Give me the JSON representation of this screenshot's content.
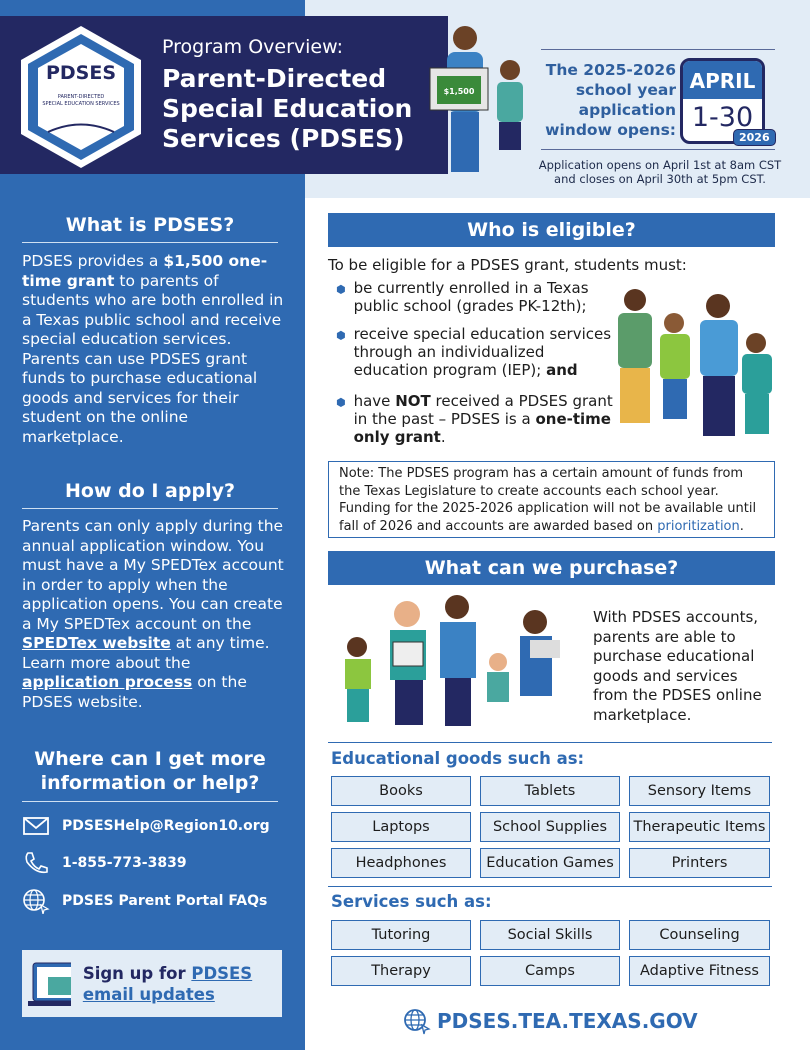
{
  "header": {
    "logo_text": "PDSES",
    "logo_sub": "PARENT-DIRECTED SPECIAL EDUCATION SERVICES",
    "kicker": "Program Overview:",
    "title": "Parent-Directed Special Education Services (PDSES)",
    "money_label": "$1,500"
  },
  "window": {
    "text": "The 2025-2026 school year application window opens:",
    "month": "APRIL",
    "days": "1-30",
    "year": "2026",
    "detail_1": "Application opens on April 1st at 8am CST",
    "detail_2": "and closes on April 30th at 5pm CST."
  },
  "left": {
    "what_heading": "What is PDSES?",
    "what_pre": "PDSES provides a ",
    "what_bold": "$1,500 one-time grant",
    "what_post": " to parents of students who are both enrolled in a Texas public school and receive special education services. Parents can use PDSES grant funds to purchase educational goods and services for their student on the online marketplace.",
    "apply_heading": "How do I apply?",
    "apply_1": "Parents can only apply during the annual application window. You must have a My SPEDTex account in order to apply when the application opens. You can create a My SPEDTex account on the ",
    "apply_link1": "SPEDTex website",
    "apply_2": " at any time. Learn more about the ",
    "apply_link2": "application process",
    "apply_3": " on the PDSES website.",
    "help_heading": "Where can I get more information or help?",
    "email": "PDSESHelp@Region10.org",
    "phone": "1-855-773-3839",
    "faq": "PDSES Parent Portal FAQs",
    "signup_pre": "Sign up for ",
    "signup_link": "PDSES email updates"
  },
  "eligible": {
    "heading": "Who is eligible?",
    "intro": "To be eligible for a PDSES grant, students must:",
    "b1": "be currently enrolled in a Texas public school (grades PK-12th);",
    "b2_pre": "receive special education services through an individualized education program (IEP); ",
    "b2_bold": "and",
    "b3_a": "have ",
    "b3_b": "NOT",
    "b3_c": " received a PDSES grant in the past – PDSES is a ",
    "b3_d": "one-time only grant",
    "b3_e": ".",
    "note": "Note: The PDSES program has a certain amount of funds from the Texas Legislature to create accounts each school year. Funding for the 2025-2026 application will not be available until fall of 2026 and accounts are awarded based on ",
    "note_link": "prioritization",
    "note_end": "."
  },
  "purchase": {
    "heading": "What can we purchase?",
    "text": "With PDSES accounts, parents are able to purchase educational goods and services from the PDSES online marketplace.",
    "goods_heading": "Educational goods such as:",
    "goods": [
      "Books",
      "Tablets",
      "Sensory Items",
      "Laptops",
      "School Supplies",
      "Therapeutic Items",
      "Headphones",
      "Education Games",
      "Printers"
    ],
    "services_heading": "Services such as:",
    "services": [
      "Tutoring",
      "Social Skills",
      "Counseling",
      "Therapy",
      "Camps",
      "Adaptive Fitness"
    ]
  },
  "footer": {
    "url": "PDSES.TEA.TEXAS.GOV"
  },
  "colors": {
    "blue": "#2f6ab2",
    "navy": "#232862",
    "light": "#e2ecf6"
  }
}
